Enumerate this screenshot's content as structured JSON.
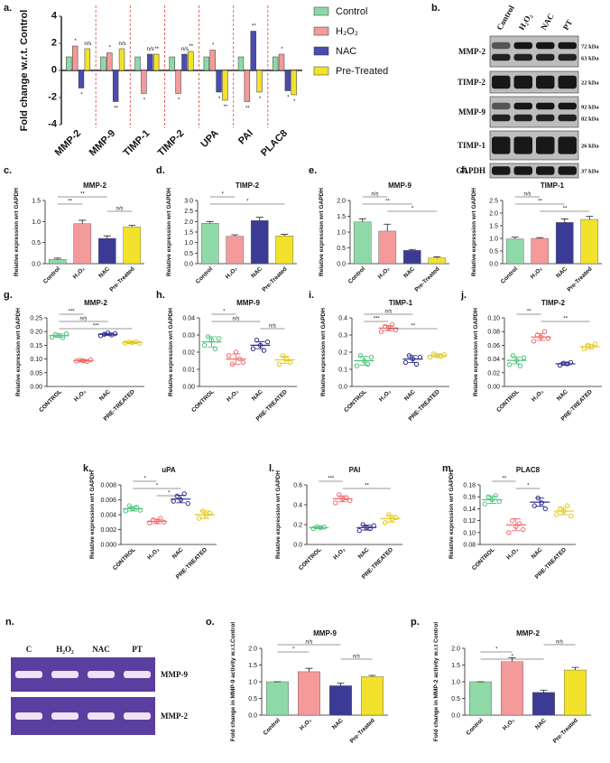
{
  "chart_data": [
    {
      "type": "bar",
      "panel": "a.",
      "y_label": "Fold change w.r.t. Control",
      "categories": [
        "MMP-2",
        "MMP-9",
        "TIMP-1",
        "TIMP-2",
        "UPA",
        "PAI",
        "PLAC8"
      ],
      "series": [
        {
          "name": "Control",
          "color": "#8fd9a8",
          "values": [
            1,
            1,
            1,
            1,
            1,
            1,
            1
          ]
        },
        {
          "name": "H₂O₂",
          "color": "#f59a9a",
          "values": [
            1.8,
            1.3,
            -1.7,
            -1.7,
            1.5,
            -2.3,
            1.2
          ],
          "annotations": [
            "*",
            "*",
            "*",
            "*",
            "*",
            "**",
            "*"
          ]
        },
        {
          "name": "NAC",
          "color": "#4b4bb0",
          "values": [
            -1.3,
            -2.3,
            1.2,
            1.2,
            -1.6,
            2.9,
            -1.5
          ],
          "annotations": [
            "*",
            "**",
            "n/s",
            "n/s",
            "*",
            "**",
            "*"
          ]
        },
        {
          "name": "Pre-Treated",
          "color": "#f2e22b",
          "values": [
            1.6,
            1.6,
            1.2,
            1.4,
            -2.2,
            -1.6,
            -1.8
          ],
          "annotations": [
            "n/s",
            "n/s",
            "**",
            "**",
            "**",
            "*",
            "*"
          ]
        }
      ],
      "ylim": [
        -4,
        4
      ],
      "yticks": [
        -4,
        -2,
        0,
        2,
        4
      ]
    },
    {
      "type": "bar",
      "panel": "c.",
      "title": "MMP-2",
      "y_label": "Relative expression wrt GAPDH",
      "categories": [
        "Control",
        "H₂O₂",
        "NAC",
        "Pre-Treated"
      ],
      "values": [
        0.1,
        0.95,
        0.6,
        0.87
      ],
      "errors": [
        0.03,
        0.08,
        0.06,
        0.04
      ],
      "colors": [
        "#8fd9a8",
        "#f59a9a",
        "#3b3b96",
        "#f2e22b"
      ],
      "ylim": [
        0,
        1.5
      ],
      "yticks": [
        {
          "value": 0,
          "label": "0.0"
        },
        0.5,
        {
          "value": 1,
          "label": "1.0"
        },
        1.5
      ],
      "annotations": [
        "**",
        "**",
        "n/s"
      ]
    },
    {
      "type": "bar",
      "panel": "d.",
      "title": "TIMP-2",
      "y_label": "Relative expression wrt GAPDH",
      "categories": [
        "Control",
        "H₂O₂",
        "NAC",
        "Pre-Treated"
      ],
      "values": [
        1.92,
        1.3,
        2.05,
        1.32
      ],
      "errors": [
        0.08,
        0.07,
        0.15,
        0.07
      ],
      "colors": [
        "#8fd9a8",
        "#f59a9a",
        "#3b3b96",
        "#f2e22b"
      ],
      "ylim": [
        0,
        3
      ],
      "yticks": [
        {
          "value": 0,
          "label": "0.0"
        },
        0.5,
        {
          "value": 1,
          "label": "1.0"
        },
        1.5,
        {
          "value": 2,
          "label": "2.0"
        },
        2.5,
        {
          "value": 3,
          "label": "3.0"
        }
      ],
      "annotations": [
        "*",
        "*"
      ]
    },
    {
      "type": "bar",
      "panel": "e.",
      "title": "MMP-9",
      "y_label": "Relative expression wrt GAPDH",
      "categories": [
        "Control",
        "H₂O₂",
        "NAC",
        "Pre-Treated"
      ],
      "values": [
        1.32,
        1.03,
        0.42,
        0.18
      ],
      "errors": [
        0.1,
        0.22,
        0.03,
        0.04
      ],
      "colors": [
        "#8fd9a8",
        "#f59a9a",
        "#3b3b96",
        "#f2e22b"
      ],
      "ylim": [
        0,
        2
      ],
      "yticks": [
        {
          "value": 0,
          "label": "0.0"
        },
        0.5,
        {
          "value": 1,
          "label": "1.0"
        },
        1.5,
        {
          "value": 2,
          "label": "2.0"
        }
      ],
      "annotations": [
        "n/s",
        "**",
        "*"
      ]
    },
    {
      "type": "bar",
      "panel": "f.",
      "title": "TIMP-1",
      "y_label": "Relative expression wrt GAPDH",
      "categories": [
        "Control",
        "H₂O₂",
        "NAC",
        "Pre-Treated"
      ],
      "values": [
        0.98,
        1.0,
        1.63,
        1.75
      ],
      "errors": [
        0.07,
        0.03,
        0.14,
        0.12
      ],
      "colors": [
        "#8fd9a8",
        "#f59a9a",
        "#3b3b96",
        "#f2e22b"
      ],
      "ylim": [
        0,
        2.5
      ],
      "yticks": [
        {
          "value": 0,
          "label": "0.0"
        },
        0.5,
        {
          "value": 1,
          "label": "1.0"
        },
        1.5,
        {
          "value": 2,
          "label": "2.0"
        },
        2.5
      ],
      "annotations": [
        "n/s",
        "**",
        "**"
      ]
    },
    {
      "type": "dot",
      "panel": "g.",
      "title": "MMP-2",
      "y_label": "Relative expression wrt GAPDH",
      "categories": [
        "CONTROL",
        "H₂O₂",
        "NAC",
        "PRE-TREATED"
      ],
      "colors": [
        "#4cc47a",
        "#f06a6a",
        "#2d2d8c",
        "#e0c81a"
      ],
      "points": [
        [
          0.18,
          0.19,
          0.185,
          0.178,
          0.192
        ],
        [
          0.093,
          0.096,
          0.094,
          0.091,
          0.097
        ],
        [
          0.185,
          0.19,
          0.195,
          0.188,
          0.192
        ],
        [
          0.158,
          0.162,
          0.16,
          0.163,
          0.157
        ]
      ],
      "values": [
        0.185,
        0.094,
        0.19,
        0.16
      ],
      "errors": [
        0.006,
        0.003,
        0.004,
        0.003
      ],
      "ylim": [
        0,
        0.25
      ],
      "yticks": [
        {
          "value": 0,
          "label": "0.00"
        },
        {
          "value": 0.05,
          "label": "0.05"
        },
        {
          "value": 0.1,
          "label": "0.10"
        },
        {
          "value": 0.15,
          "label": "0.15"
        },
        {
          "value": 0.2,
          "label": "0.20"
        },
        {
          "value": 0.25,
          "label": "0.25"
        }
      ],
      "annotations": [
        "***",
        "n/s",
        "***"
      ]
    },
    {
      "type": "dot",
      "panel": "h.",
      "title": "MMP-9",
      "y_label": "Relative expression wrt GAPDH",
      "categories": [
        "CONTROL",
        "H₂O₂",
        "NAC",
        "PRE-TREATED"
      ],
      "colors": [
        "#4cc47a",
        "#f06a6a",
        "#2d2d8c",
        "#e0c81a"
      ],
      "points": [
        [
          0.024,
          0.029,
          0.027,
          0.022,
          0.028
        ],
        [
          0.018,
          0.013,
          0.02,
          0.016,
          0.014
        ],
        [
          0.022,
          0.027,
          0.024,
          0.021,
          0.026
        ],
        [
          0.013,
          0.018,
          0.016,
          0.014
        ]
      ],
      "values": [
        0.026,
        0.016,
        0.024,
        0.0155
      ],
      "errors": [
        0.003,
        0.003,
        0.002,
        0.002
      ],
      "ylim": [
        0,
        0.04
      ],
      "yticks": [
        {
          "value": 0,
          "label": "0.00"
        },
        0.01,
        0.02,
        0.03,
        0.04
      ],
      "annotations": [
        "*",
        "n/s",
        "n/s"
      ]
    },
    {
      "type": "dot",
      "panel": "i.",
      "title": "TIMP-1",
      "y_label": "Relative expression wrt GAPDH",
      "categories": [
        "CONTROL",
        "H₂O₂",
        "NAC",
        "PRE-TREATED"
      ],
      "colors": [
        "#4cc47a",
        "#f06a6a",
        "#2d2d8c",
        "#e0c81a"
      ],
      "points": [
        [
          0.12,
          0.18,
          0.15,
          0.13,
          0.17
        ],
        [
          0.32,
          0.35,
          0.34,
          0.36,
          0.33
        ],
        [
          0.14,
          0.18,
          0.16,
          0.13,
          0.17
        ],
        [
          0.17,
          0.19,
          0.18,
          0.175,
          0.185
        ]
      ],
      "values": [
        0.15,
        0.34,
        0.16,
        0.18
      ],
      "errors": [
        0.025,
        0.015,
        0.02,
        0.01
      ],
      "ylim": [
        0,
        0.4
      ],
      "yticks": [
        {
          "value": 0,
          "label": "0.0"
        },
        0.1,
        0.2,
        0.3,
        0.4
      ],
      "annotations": [
        "n/s",
        "***",
        "**"
      ]
    },
    {
      "type": "dot",
      "panel": "j.",
      "title": "TIMP-2",
      "y_label": "Relative expression wrt GAPDH",
      "categories": [
        "CONTROL",
        "H₂O₂",
        "NAC",
        "PRE-TREATED"
      ],
      "colors": [
        "#4cc47a",
        "#f06a6a",
        "#2d2d8c",
        "#e0c81a"
      ],
      "points": [
        [
          0.032,
          0.045,
          0.038,
          0.03,
          0.042
        ],
        [
          0.066,
          0.075,
          0.072,
          0.08,
          0.07
        ],
        [
          0.031,
          0.034,
          0.033,
          0.035
        ],
        [
          0.055,
          0.06,
          0.058,
          0.062
        ]
      ],
      "values": [
        0.038,
        0.072,
        0.033,
        0.058
      ],
      "errors": [
        0.005,
        0.005,
        0.002,
        0.003
      ],
      "ylim": [
        0,
        0.1
      ],
      "yticks": [
        {
          "value": 0,
          "label": "0.00"
        },
        0.02,
        0.04,
        0.06,
        0.08,
        {
          "value": 0.1,
          "label": "0.10"
        }
      ],
      "annotations": [
        "**",
        "**"
      ]
    },
    {
      "type": "dot",
      "panel": "k.",
      "title": "uPA",
      "y_label": "Relative expression wrt GAPDH",
      "categories": [
        "CONTROL",
        "H₂O₂",
        "NAC",
        "PRE-TREATED"
      ],
      "colors": [
        "#4cc47a",
        "#f06a6a",
        "#2d2d8c",
        "#e0c81a"
      ],
      "points": [
        [
          0.0045,
          0.0052,
          0.0048,
          0.005,
          0.0046
        ],
        [
          0.0029,
          0.0033,
          0.0031,
          0.0035,
          0.003
        ],
        [
          0.0058,
          0.0065,
          0.006,
          0.0068,
          0.0055
        ],
        [
          0.0035,
          0.0045,
          0.004,
          0.0042
        ]
      ],
      "values": [
        0.0048,
        0.0031,
        0.0061,
        0.004
      ],
      "errors": [
        0.0003,
        0.0003,
        0.0005,
        0.0005
      ],
      "ylim": [
        0,
        0.008
      ],
      "yticks": [
        {
          "value": 0,
          "label": "0.000"
        },
        0.002,
        0.004,
        0.006,
        0.008
      ],
      "annotations": [
        "*",
        "*",
        "*"
      ]
    },
    {
      "type": "dot",
      "panel": "l.",
      "title": "PAI",
      "y_label": "Relative expression wrt GAPDH",
      "categories": [
        "CONTROL",
        "H₂O₂",
        "NAC",
        "PRE-TREATED"
      ],
      "colors": [
        "#4cc47a",
        "#f06a6a",
        "#2d2d8c",
        "#e0c81a"
      ],
      "points": [
        [
          0.16,
          0.18,
          0.17,
          0.175
        ],
        [
          0.42,
          0.5,
          0.46,
          0.47,
          0.44
        ],
        [
          0.14,
          0.2,
          0.17,
          0.16,
          0.19
        ],
        [
          0.22,
          0.3,
          0.26,
          0.27
        ]
      ],
      "values": [
        0.17,
        0.46,
        0.17,
        0.26
      ],
      "errors": [
        0.01,
        0.03,
        0.025,
        0.035
      ],
      "ylim": [
        0,
        0.6
      ],
      "yticks": [
        {
          "value": 0,
          "label": "0.0"
        },
        0.2,
        0.4,
        0.6
      ],
      "annotations": [
        "***",
        "**"
      ]
    },
    {
      "type": "dot",
      "panel": "m.",
      "title": "PLAC8",
      "y_label": "Relative expression wrt GAPDH",
      "categories": [
        "CONTROL",
        "H₂O₂",
        "NAC",
        "PRE-TREATED"
      ],
      "colors": [
        "#4cc47a",
        "#f06a6a",
        "#2d2d8c",
        "#e0c81a"
      ],
      "points": [
        [
          0.148,
          0.16,
          0.155,
          0.162,
          0.152
        ],
        [
          0.1,
          0.12,
          0.11,
          0.115,
          0.105
        ],
        [
          0.145,
          0.158,
          0.15,
          0.14
        ],
        [
          0.13,
          0.14,
          0.136,
          0.145,
          0.128
        ]
      ],
      "values": [
        0.155,
        0.113,
        0.151,
        0.136
      ],
      "errors": [
        0.006,
        0.01,
        0.007,
        0.006
      ],
      "ylim": [
        0.08,
        0.18
      ],
      "yticks": [
        0.08,
        {
          "value": 0.1,
          "label": "0.10"
        },
        0.12,
        0.14,
        0.16,
        0.18
      ],
      "annotations": [
        "**",
        "*"
      ]
    },
    {
      "type": "bar",
      "panel": "o.",
      "title": "MMP-9",
      "y_label": "Fold change in MMP-9 activity w.r.t.Control",
      "categories": [
        "Control",
        "H₂O₂",
        "NAC",
        "Pre-Treated"
      ],
      "values": [
        1.0,
        1.3,
        0.88,
        1.15
      ],
      "errors": [
        0,
        0.1,
        0.08,
        0.04
      ],
      "colors": [
        "#8fd9a8",
        "#f59a9a",
        "#3b3b96",
        "#f2e22b"
      ],
      "ylim": [
        0,
        2
      ],
      "yticks": [
        {
          "value": 0,
          "label": "0.0"
        },
        0.5,
        {
          "value": 1,
          "label": "1.0"
        },
        1.5,
        {
          "value": 2,
          "label": "2.0"
        }
      ],
      "annotations": [
        "n/s",
        "*",
        "n/s"
      ]
    },
    {
      "type": "bar",
      "panel": "p.",
      "title": "MMP-2",
      "y_label": "Fold change in MMP-2 activity w.r.t Control",
      "categories": [
        "Control",
        "H₂O₂",
        "NAC",
        "Pre-Treated"
      ],
      "values": [
        1.0,
        1.6,
        0.68,
        1.35
      ],
      "errors": [
        0,
        0.12,
        0.07,
        0.08
      ],
      "colors": [
        "#8fd9a8",
        "#f59a9a",
        "#3b3b96",
        "#f2e22b"
      ],
      "ylim": [
        0,
        2
      ],
      "yticks": [
        {
          "value": 0,
          "label": "0.0"
        },
        0.5,
        {
          "value": 1,
          "label": "1.0"
        },
        1.5,
        {
          "value": 2,
          "label": "2.0"
        }
      ],
      "annotations": [
        "n/s",
        "*",
        "*"
      ]
    }
  ],
  "blot": {
    "panel": "b.",
    "columns": [
      "Control",
      "H₂O₂",
      "NAC",
      "PT"
    ],
    "rows": [
      {
        "label": "MMP-2",
        "kda": [
          "72 kDa",
          "63 kDa"
        ]
      },
      {
        "label": "TIMP-2",
        "kda": [
          "22 kDa"
        ]
      },
      {
        "label": "MMP-9",
        "kda": [
          "92 kDa",
          "82 kDa"
        ]
      },
      {
        "label": "TIMP-1",
        "kda": [
          "26 kDa"
        ]
      },
      {
        "label": "GAPDH",
        "kda": [
          "37 kDa"
        ]
      }
    ]
  },
  "zymogram": {
    "panel": "n.",
    "columns": [
      "C",
      "H₂O₂",
      "NAC",
      "PT"
    ],
    "rows": [
      "MMP-9",
      "MMP-2"
    ]
  }
}
